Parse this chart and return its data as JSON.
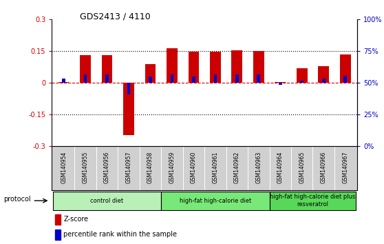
{
  "title": "GDS2413 / 4110",
  "samples": [
    "GSM140954",
    "GSM140955",
    "GSM140956",
    "GSM140957",
    "GSM140958",
    "GSM140959",
    "GSM140960",
    "GSM140961",
    "GSM140962",
    "GSM140963",
    "GSM140964",
    "GSM140965",
    "GSM140966",
    "GSM140967"
  ],
  "zscore": [
    0.005,
    0.13,
    0.13,
    -0.245,
    0.09,
    0.165,
    0.147,
    0.148,
    0.153,
    0.152,
    0.003,
    0.07,
    0.08,
    0.135
  ],
  "percentile_offset": [
    0.02,
    0.04,
    0.04,
    -0.055,
    0.03,
    0.04,
    0.03,
    0.04,
    0.04,
    0.04,
    -0.01,
    0.01,
    0.02,
    0.035
  ],
  "ylim": [
    -0.3,
    0.3
  ],
  "yticks_left": [
    -0.3,
    -0.15,
    0.0,
    0.15,
    0.3
  ],
  "ytick_labels_left": [
    "-0.3",
    "-0.15",
    "0",
    "0.15",
    "0.3"
  ],
  "ytick_labels_right": [
    "0%",
    "25%",
    "50%",
    "75%",
    "100%"
  ],
  "pct_ticks": [
    0,
    25,
    50,
    75,
    100
  ],
  "dotted_lines": [
    -0.15,
    0.15
  ],
  "groups": [
    {
      "label": "control diet",
      "start": 0,
      "end": 5,
      "color": "#b8f0b8"
    },
    {
      "label": "high-fat high-calorie diet",
      "start": 5,
      "end": 10,
      "color": "#78e878"
    },
    {
      "label": "high-fat high-calorie diet plus\nresveratrol",
      "start": 10,
      "end": 14,
      "color": "#58d858"
    }
  ],
  "protocol_label": "protocol",
  "zscore_color": "#cc0000",
  "percentile_color": "#0000cc",
  "axis_left_color": "#cc0000",
  "axis_right_color": "#0000bb",
  "background_color": "#ffffff",
  "plot_bg_color": "#ffffff",
  "sample_bg_color": "#d0d0d0",
  "legend_zscore": "Z-score",
  "legend_percentile": "percentile rank within the sample",
  "bar_width": 0.5,
  "pct_bar_width": 0.15
}
